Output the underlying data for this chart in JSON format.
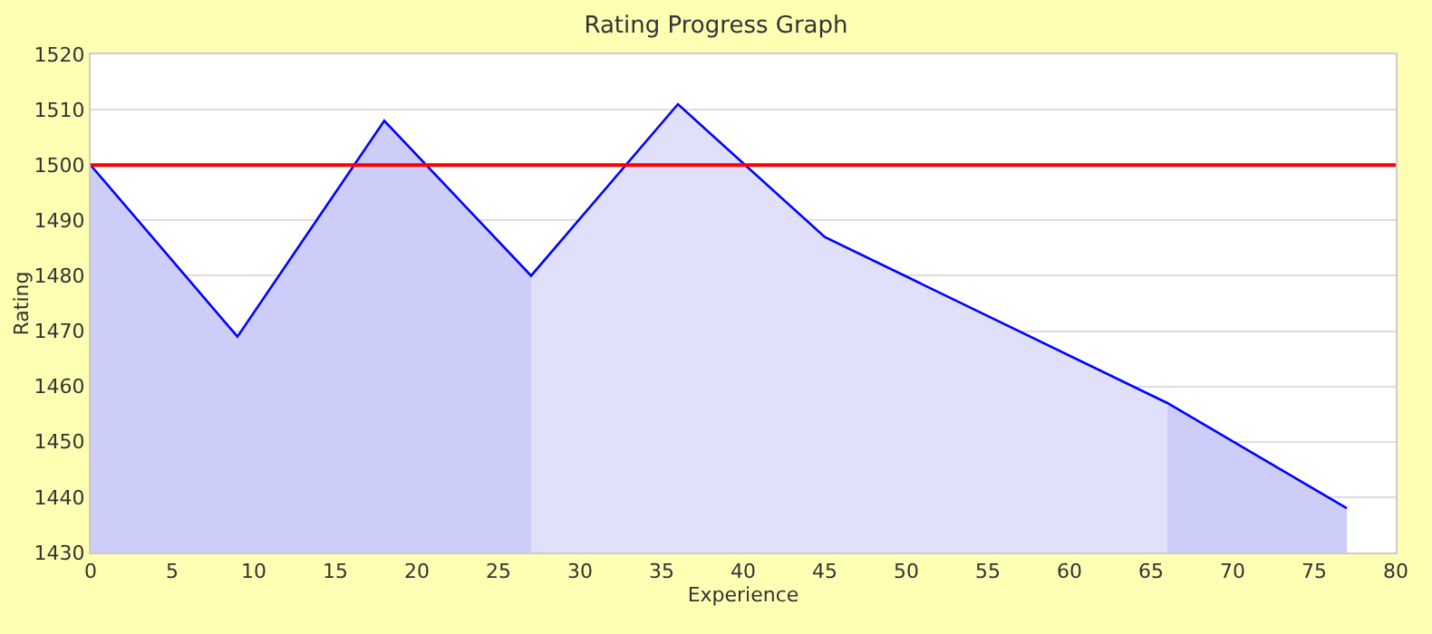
{
  "chart_data": {
    "type": "area",
    "title": "Rating Progress Graph",
    "xlabel": "Experience",
    "ylabel": "Rating",
    "series": [
      {
        "color": "#cdcdfa",
        "x": [
          0,
          9,
          18,
          27
        ],
        "values": [
          1500,
          1469,
          1508,
          1480
        ]
      },
      {
        "color": "#e0e0fa",
        "x": [
          27,
          36,
          45,
          66
        ],
        "values": [
          1480,
          1511,
          1487,
          1457
        ]
      },
      {
        "color": "#cdcdfa",
        "x": [
          66,
          77
        ],
        "values": [
          1457,
          1438
        ]
      },
      {
        "type": "line",
        "color": "#0000ff",
        "x": [
          0,
          9,
          18,
          27,
          36,
          45,
          66,
          77
        ],
        "values": [
          1500,
          1469,
          1508,
          1480,
          1511,
          1487,
          1457,
          1438
        ]
      }
    ],
    "ref_lines": [
      {
        "axis": "y",
        "value": 1500,
        "color": "#ff0000"
      }
    ],
    "xlim": [
      0,
      80
    ],
    "xticks": [
      0,
      5,
      10,
      15,
      20,
      25,
      30,
      35,
      40,
      45,
      50,
      55,
      60,
      65,
      70,
      75,
      80
    ],
    "ylim": [
      1430,
      1520
    ],
    "yticks": [
      1430,
      1440,
      1450,
      1460,
      1470,
      1480,
      1490,
      1500,
      1510,
      1520
    ],
    "grid": "y"
  }
}
